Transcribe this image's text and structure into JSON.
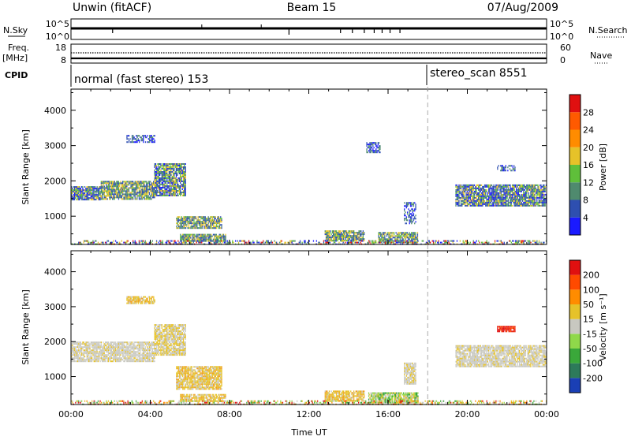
{
  "header": {
    "station": "Unwin (fitACF)",
    "beam": "Beam 15",
    "date": "07/Aug/2009"
  },
  "top_panels": {
    "nsky_label": "N.Sky",
    "nsky_ticks": [
      "10^5",
      "10^0"
    ],
    "nsearch_label": "N.Search",
    "nsearch_ticks": [
      "10^5",
      "10^0"
    ],
    "freq_label": "Freq.",
    "freq_unit": "[MHz]",
    "freq_ticks": [
      "18",
      "8"
    ],
    "nave_label": "Nave",
    "nave_ticks": [
      "60",
      "0"
    ],
    "cpid_label": "CPID",
    "cpid_segments": [
      {
        "text": "normal (fast stereo) 153",
        "start_hour": 0
      },
      {
        "text": "stereo_scan 8551",
        "start_hour": 18
      }
    ]
  },
  "chart_data": [
    {
      "type": "heatmap",
      "name": "power-panel",
      "xlabel": "",
      "ylabel": "Slant Range [km]",
      "xlim": [
        0,
        24
      ],
      "ylim": [
        200,
        4600
      ],
      "yticks": [
        1000,
        2000,
        3000,
        4000
      ],
      "colorbar_title": "Power [dB]",
      "colorbar_labels": [
        "4",
        "8",
        "12",
        "16",
        "20",
        "24",
        "28"
      ],
      "colorbar_colors": [
        "#1a1aff",
        "#2e4fb0",
        "#4f8a6e",
        "#5fbf3a",
        "#e6c229",
        "#ff8c00",
        "#ff5a00",
        "#e01010"
      ],
      "regions": [
        {
          "x0": 0.0,
          "x1": 1.5,
          "y0": 1450,
          "y1": 1850,
          "level": "mix"
        },
        {
          "x0": 1.5,
          "x1": 4.2,
          "y0": 1500,
          "y1": 2000,
          "level": "high"
        },
        {
          "x0": 4.2,
          "x1": 5.8,
          "y0": 1600,
          "y1": 2500,
          "level": "mix"
        },
        {
          "x0": 2.8,
          "x1": 4.2,
          "y0": 3100,
          "y1": 3300,
          "level": "low"
        },
        {
          "x0": 5.3,
          "x1": 7.6,
          "y0": 650,
          "y1": 1000,
          "level": "high"
        },
        {
          "x0": 5.5,
          "x1": 7.8,
          "y0": 300,
          "y1": 500,
          "level": "high"
        },
        {
          "x0": 12.8,
          "x1": 14.8,
          "y0": 300,
          "y1": 600,
          "level": "high"
        },
        {
          "x0": 15.5,
          "x1": 17.5,
          "y0": 250,
          "y1": 550,
          "level": "high"
        },
        {
          "x0": 16.8,
          "x1": 17.4,
          "y0": 800,
          "y1": 1400,
          "level": "low"
        },
        {
          "x0": 14.9,
          "x1": 15.6,
          "y0": 2800,
          "y1": 3100,
          "level": "low"
        },
        {
          "x0": 19.4,
          "x1": 24.0,
          "y0": 1300,
          "y1": 1900,
          "level": "mix"
        },
        {
          "x0": 21.5,
          "x1": 22.4,
          "y0": 2300,
          "y1": 2450,
          "level": "low"
        },
        {
          "x0": 0.0,
          "x1": 24.0,
          "y0": 200,
          "y1": 320,
          "level": "sparse"
        }
      ]
    },
    {
      "type": "heatmap",
      "name": "velocity-panel",
      "xlabel": "Time UT",
      "ylabel": "Slant Range [km]",
      "xlim": [
        0,
        24
      ],
      "ylim": [
        200,
        4600
      ],
      "xticks": [
        "00:00",
        "04:00",
        "08:00",
        "12:00",
        "16:00",
        "20:00",
        "00:00"
      ],
      "yticks": [
        1000,
        2000,
        3000,
        4000
      ],
      "colorbar_title": "Velocity [m s⁻¹]",
      "colorbar_labels": [
        "200",
        "100",
        "50",
        "15",
        "-15",
        "-50",
        "-100",
        "-200"
      ],
      "colorbar_colors": [
        "#1a3fb5",
        "#2d7a5a",
        "#3aa83a",
        "#8fd84a",
        "#c8c8c0",
        "#e6c229",
        "#ff8c00",
        "#ff4a00",
        "#e01010"
      ],
      "regions": [
        {
          "x0": 0.0,
          "x1": 4.2,
          "y0": 1450,
          "y1": 2000,
          "level": "gray"
        },
        {
          "x0": 4.2,
          "x1": 5.8,
          "y0": 1600,
          "y1": 2500,
          "level": "gray-yellow"
        },
        {
          "x0": 2.8,
          "x1": 4.2,
          "y0": 3100,
          "y1": 3300,
          "level": "yellow"
        },
        {
          "x0": 5.3,
          "x1": 7.6,
          "y0": 650,
          "y1": 1300,
          "level": "yellow"
        },
        {
          "x0": 5.5,
          "x1": 7.8,
          "y0": 300,
          "y1": 500,
          "level": "yellow"
        },
        {
          "x0": 12.8,
          "x1": 14.8,
          "y0": 300,
          "y1": 600,
          "level": "yellow"
        },
        {
          "x0": 15.0,
          "x1": 17.5,
          "y0": 250,
          "y1": 550,
          "level": "green"
        },
        {
          "x0": 16.8,
          "x1": 17.4,
          "y0": 800,
          "y1": 1400,
          "level": "gray"
        },
        {
          "x0": 19.4,
          "x1": 24.0,
          "y0": 1300,
          "y1": 1900,
          "level": "gray"
        },
        {
          "x0": 21.5,
          "x1": 22.4,
          "y0": 2300,
          "y1": 2450,
          "level": "red"
        },
        {
          "x0": 0.0,
          "x1": 24.0,
          "y0": 200,
          "y1": 320,
          "level": "sparse"
        }
      ]
    }
  ]
}
